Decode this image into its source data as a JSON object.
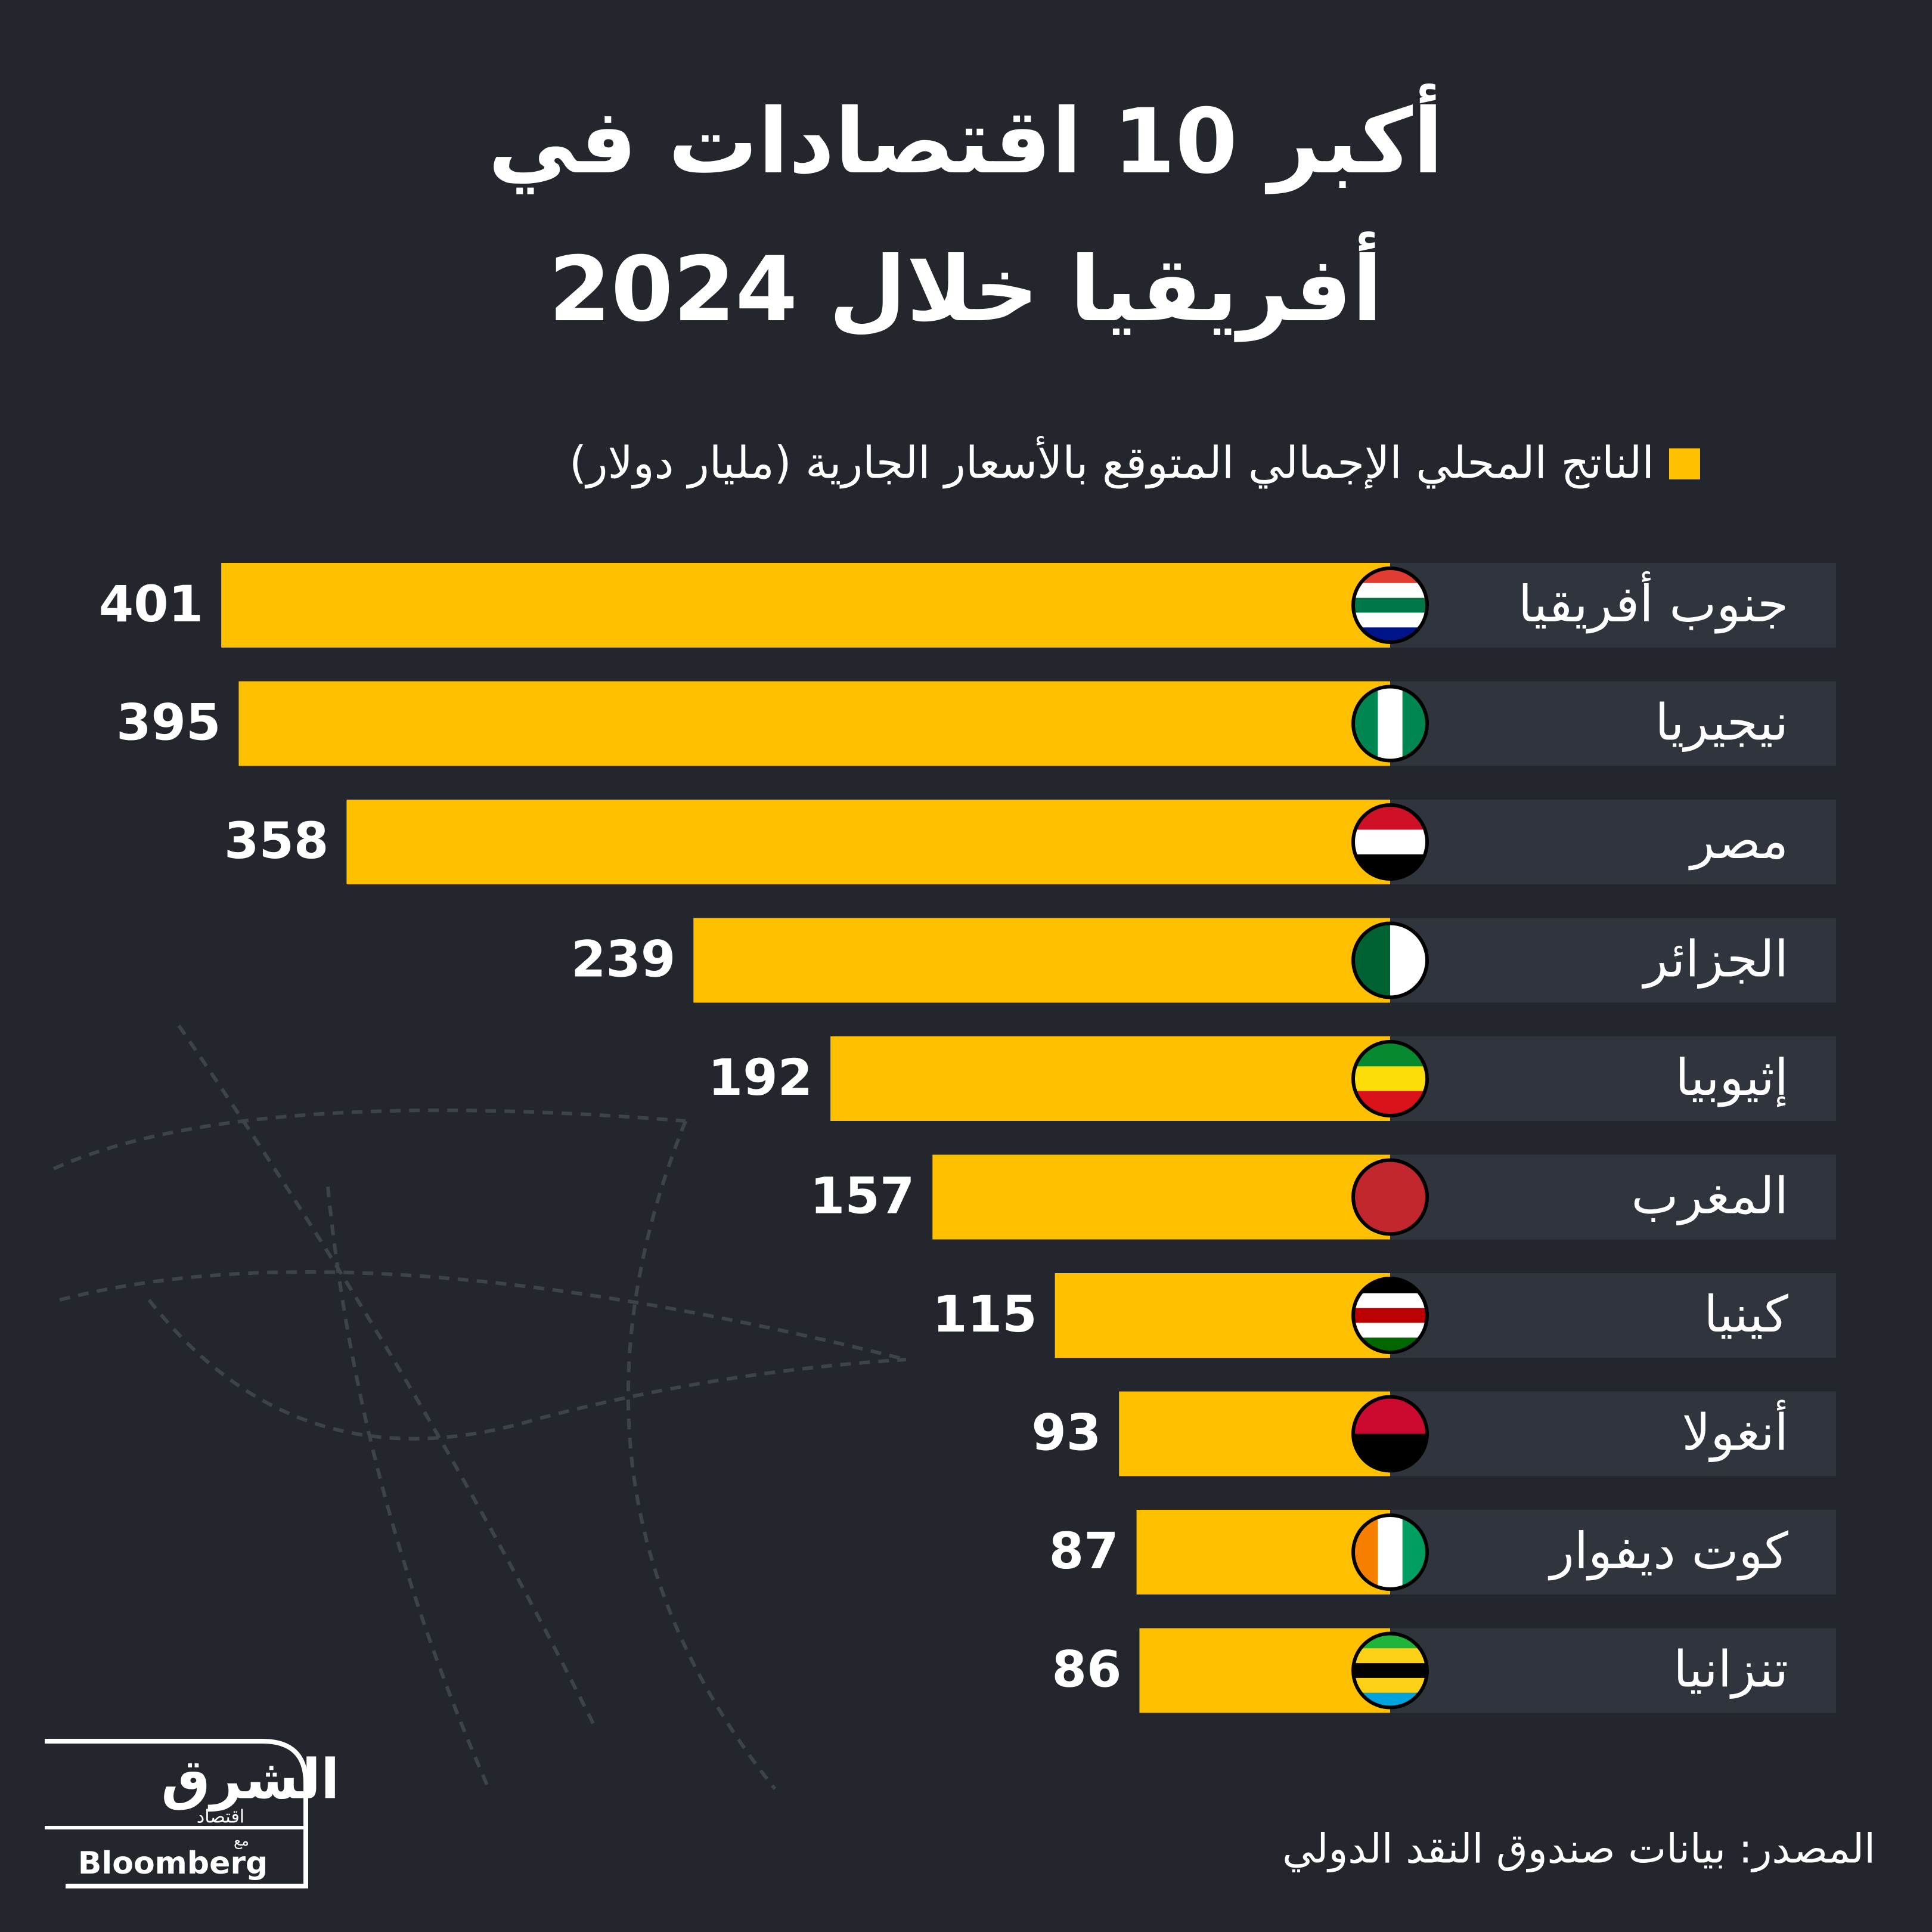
{
  "chart_data": {
    "type": "bar",
    "title_lines": [
      "أكبر 10 اقتصادات في",
      "أفريقيا خلال 2024"
    ],
    "series": [
      {
        "name": "الناتج المحلي الإجمالي المتوقع بالأسعار الجارية (مليار دولار)",
        "color": "#ffc000",
        "values": [
          401,
          395,
          358,
          239,
          192,
          157,
          115,
          93,
          87,
          86
        ]
      }
    ],
    "categories": [
      "جنوب أفريقيا",
      "نيجيريا",
      "مصر",
      "الجزائر",
      "إثيوبيا",
      "المغرب",
      "كينيا",
      "أنغولا",
      "كوت ديفوار",
      "تنزانيا"
    ],
    "source": "المصدر: بيانات صندوق النقد الدولي"
  },
  "logo": {
    "brand": "الشرق",
    "section": "اقتصاد",
    "with": "مع",
    "partner": "Bloomberg"
  }
}
